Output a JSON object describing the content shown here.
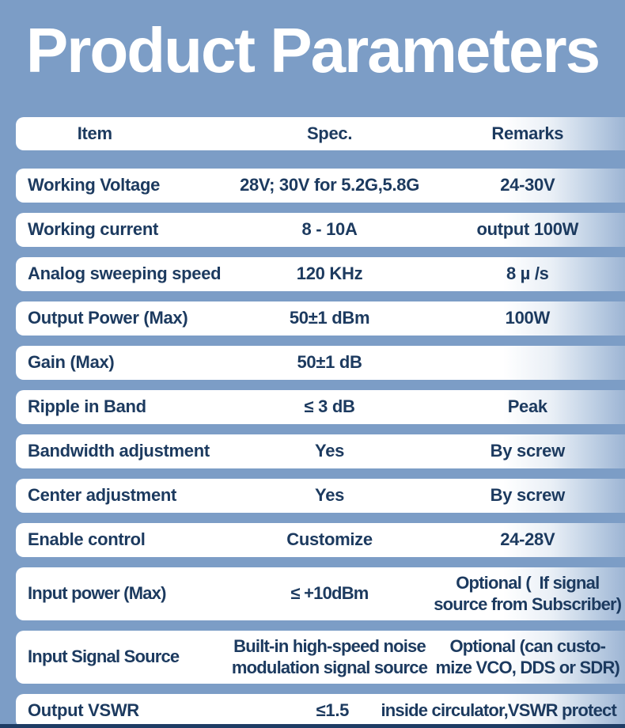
{
  "title": "Product Parameters",
  "colors": {
    "background": "#7C9DC6",
    "row_white": "#FFFFFF",
    "text_navy": "#1C3A5F",
    "title_text": "#FFFFFF",
    "bottom_bar": "#1E3C64"
  },
  "table": {
    "headers": [
      "Item",
      "Spec.",
      "Remarks"
    ],
    "rows": [
      {
        "item": "Working Voltage",
        "spec": "28V; 30V for 5.2G,5.8G",
        "remarks": "24-30V"
      },
      {
        "item": "Working current",
        "spec": "8 - 10A",
        "remarks": "output 100W"
      },
      {
        "item": "Analog sweeping speed",
        "spec": "120 KHz",
        "remarks": "8 µ /s"
      },
      {
        "item": "Output Power (Max)",
        "spec": "50±1 dBm",
        "remarks": "100W"
      },
      {
        "item": "Gain (Max)",
        "spec": "50±1 dB",
        "remarks": ""
      },
      {
        "item": "Ripple in Band",
        "spec": "≤ 3 dB",
        "remarks": "Peak"
      },
      {
        "item": "Bandwidth adjustment",
        "spec": "Yes",
        "remarks": "By screw"
      },
      {
        "item": "Center adjustment",
        "spec": "Yes",
        "remarks": "By screw"
      },
      {
        "item": "Enable control",
        "spec": "Customize",
        "remarks": "24-28V"
      },
      {
        "item": "Input power (Max)",
        "spec": "≤ +10dBm",
        "remarks": "Optional (  If signal\nsource from Subscriber)"
      },
      {
        "item": "Input Signal Source",
        "spec": "Built-in high-speed noise\nmodulation signal source",
        "remarks": "Optional (can custo-\nmize VCO, DDS or SDR)"
      },
      {
        "item": "Output VSWR",
        "spec": "≤1.5",
        "remarks": "inside circulator,VSWR protect"
      }
    ]
  }
}
